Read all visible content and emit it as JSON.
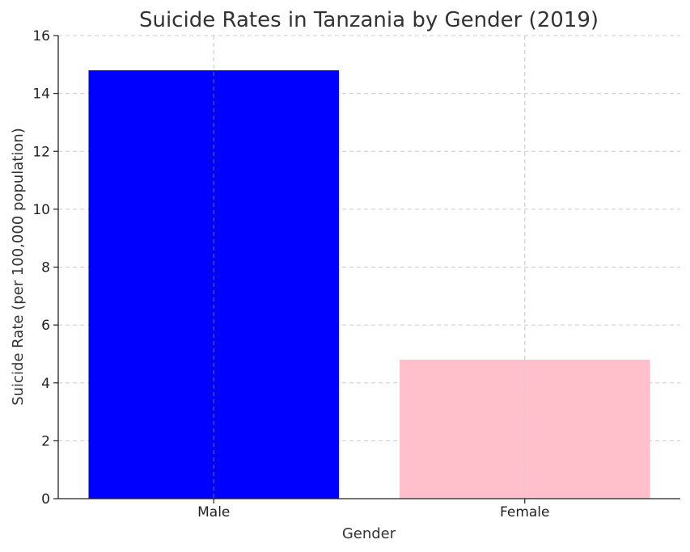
{
  "chart_data": {
    "type": "bar",
    "title": "Suicide Rates in Tanzania by Gender (2019)",
    "xlabel": "Gender",
    "ylabel": "Suicide Rate (per 100,000 population)",
    "categories": [
      "Male",
      "Female"
    ],
    "values": [
      14.8,
      4.8
    ],
    "colors": [
      "#0000ff",
      "#ffc0cb"
    ],
    "ylim": [
      0,
      16
    ],
    "yticks": [
      "0",
      "2",
      "4",
      "6",
      "8",
      "10",
      "12",
      "14",
      "16"
    ],
    "grid": true
  }
}
